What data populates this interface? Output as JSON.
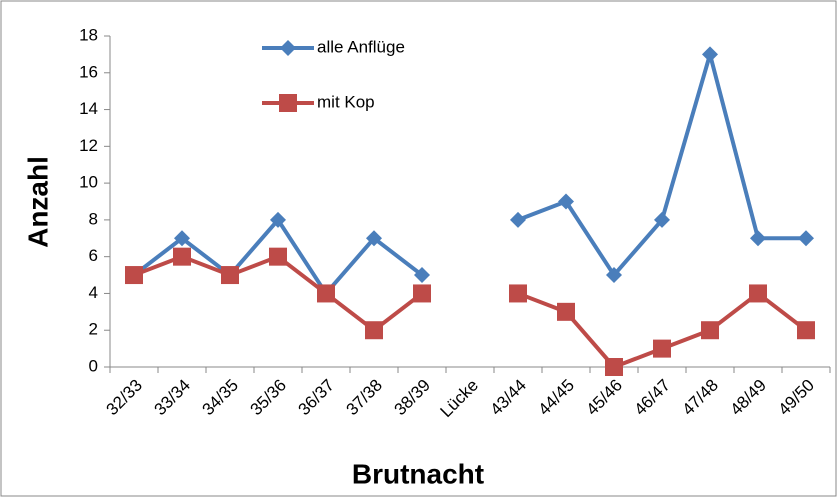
{
  "chart_data": {
    "type": "line",
    "x_label": "Brutnacht",
    "y_label": "Anzahl",
    "categories": [
      "32/33",
      "33/34",
      "34/35",
      "35/36",
      "36/37",
      "37/38",
      "38/39",
      "Lücke",
      "43/44",
      "44/45",
      "45/46",
      "46/47",
      "47/48",
      "48/49",
      "49/50"
    ],
    "series": [
      {
        "name": "alle Anflüge",
        "color": "#4a7ebb",
        "marker": "diamond",
        "values": [
          5,
          7,
          5,
          8,
          4,
          7,
          5,
          null,
          8,
          9,
          5,
          8,
          17,
          7,
          7
        ]
      },
      {
        "name": "mit Kop",
        "color": "#be4b48",
        "marker": "square",
        "values": [
          5,
          6,
          5,
          6,
          4,
          2,
          4,
          null,
          4,
          3,
          0,
          1,
          2,
          4,
          2
        ]
      }
    ],
    "ylim": [
      0,
      18
    ],
    "yticks": [
      0,
      2,
      4,
      6,
      8,
      10,
      12,
      14,
      16,
      18
    ],
    "grid": false
  }
}
